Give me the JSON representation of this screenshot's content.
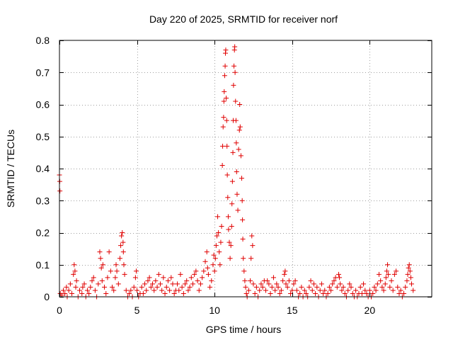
{
  "chart_data": {
    "type": "scatter",
    "title": "Day 220 of 2025, SRMTID for receiver norf",
    "xlabel": "GPS time / hours",
    "ylabel": "SRMTID / TECUs",
    "xlim": [
      0,
      24
    ],
    "ylim": [
      0,
      0.8
    ],
    "x_ticks": [
      0,
      5,
      10,
      15,
      20
    ],
    "y_ticks": [
      0,
      0.1,
      0.2,
      0.3,
      0.4,
      0.5,
      0.6,
      0.7,
      0.8
    ],
    "x_tick_labels": [
      "0",
      "5",
      "10",
      "15",
      "20"
    ],
    "y_tick_labels": [
      "0",
      "0.1",
      "0.2",
      "0.3",
      "0.4",
      "0.5",
      "0.6",
      "0.7",
      "0.8"
    ],
    "grid": true,
    "marker": "+",
    "color": "#e00000",
    "series": [
      {
        "name": "SRMTID",
        "points": [
          [
            0.0,
            0.38
          ],
          [
            0.02,
            0.36
          ],
          [
            0.03,
            0.33
          ],
          [
            0.05,
            0.01
          ],
          [
            0.15,
            0.005
          ],
          [
            0.25,
            0.02
          ],
          [
            0.35,
            0.01
          ],
          [
            0.45,
            0.03
          ],
          [
            0.5,
            0.0
          ],
          [
            0.6,
            0.02
          ],
          [
            0.7,
            0.04
          ],
          [
            0.8,
            0.01
          ],
          [
            0.9,
            0.07
          ],
          [
            0.95,
            0.1
          ],
          [
            1.0,
            0.08
          ],
          [
            1.05,
            0.03
          ],
          [
            1.1,
            0.05
          ],
          [
            1.2,
            0.0
          ],
          [
            1.3,
            0.02
          ],
          [
            1.45,
            0.01
          ],
          [
            1.5,
            0.03
          ],
          [
            1.6,
            0.04
          ],
          [
            1.7,
            0.0
          ],
          [
            1.8,
            0.02
          ],
          [
            1.9,
            0.01
          ],
          [
            2.0,
            0.03
          ],
          [
            2.1,
            0.05
          ],
          [
            2.2,
            0.06
          ],
          [
            2.3,
            0.02
          ],
          [
            2.4,
            0.0
          ],
          [
            2.5,
            0.04
          ],
          [
            2.6,
            0.14
          ],
          [
            2.65,
            0.12
          ],
          [
            2.7,
            0.09
          ],
          [
            2.75,
            0.05
          ],
          [
            2.8,
            0.1
          ],
          [
            2.9,
            0.03
          ],
          [
            3.0,
            0.01
          ],
          [
            3.1,
            0.06
          ],
          [
            3.2,
            0.14
          ],
          [
            3.3,
            0.08
          ],
          [
            3.4,
            0.03
          ],
          [
            3.5,
            0.02
          ],
          [
            3.6,
            0.06
          ],
          [
            3.65,
            0.1
          ],
          [
            3.7,
            0.08
          ],
          [
            3.8,
            0.04
          ],
          [
            3.9,
            0.12
          ],
          [
            3.95,
            0.16
          ],
          [
            4.0,
            0.19
          ],
          [
            4.05,
            0.2
          ],
          [
            4.1,
            0.17
          ],
          [
            4.12,
            0.14
          ],
          [
            4.15,
            0.1
          ],
          [
            4.2,
            0.07
          ],
          [
            4.3,
            0.02
          ],
          [
            4.4,
            0.0
          ],
          [
            4.5,
            0.01
          ],
          [
            4.6,
            0.02
          ],
          [
            4.7,
            0.0
          ],
          [
            4.8,
            0.03
          ],
          [
            4.9,
            0.06
          ],
          [
            4.95,
            0.08
          ],
          [
            5.0,
            0.02
          ],
          [
            5.1,
            0.0
          ],
          [
            5.2,
            0.01
          ],
          [
            5.3,
            0.03
          ],
          [
            5.4,
            0.01
          ],
          [
            5.5,
            0.04
          ],
          [
            5.6,
            0.02
          ],
          [
            5.7,
            0.05
          ],
          [
            5.8,
            0.06
          ],
          [
            5.9,
            0.03
          ],
          [
            6.0,
            0.04
          ],
          [
            6.1,
            0.02
          ],
          [
            6.2,
            0.05
          ],
          [
            6.3,
            0.03
          ],
          [
            6.4,
            0.07
          ],
          [
            6.5,
            0.04
          ],
          [
            6.6,
            0.02
          ],
          [
            6.7,
            0.06
          ],
          [
            6.8,
            0.01
          ],
          [
            6.9,
            0.03
          ],
          [
            7.0,
            0.05
          ],
          [
            7.1,
            0.02
          ],
          [
            7.2,
            0.06
          ],
          [
            7.3,
            0.04
          ],
          [
            7.4,
            0.01
          ],
          [
            7.5,
            0.02
          ],
          [
            7.6,
            0.04
          ],
          [
            7.7,
            0.02
          ],
          [
            7.8,
            0.07
          ],
          [
            7.9,
            0.03
          ],
          [
            8.0,
            0.01
          ],
          [
            8.1,
            0.04
          ],
          [
            8.2,
            0.05
          ],
          [
            8.3,
            0.02
          ],
          [
            8.4,
            0.03
          ],
          [
            8.5,
            0.06
          ],
          [
            8.6,
            0.04
          ],
          [
            8.7,
            0.07
          ],
          [
            8.8,
            0.08
          ],
          [
            8.9,
            0.05
          ],
          [
            9.0,
            0.02
          ],
          [
            9.1,
            0.04
          ],
          [
            9.2,
            0.06
          ],
          [
            9.3,
            0.08
          ],
          [
            9.4,
            0.11
          ],
          [
            9.5,
            0.14
          ],
          [
            9.55,
            0.09
          ],
          [
            9.6,
            0.07
          ],
          [
            9.7,
            0.03
          ],
          [
            9.8,
            0.05
          ],
          [
            9.9,
            0.1
          ],
          [
            9.95,
            0.13
          ],
          [
            10.0,
            0.08
          ],
          [
            10.05,
            0.12
          ],
          [
            10.1,
            0.16
          ],
          [
            10.15,
            0.19
          ],
          [
            10.2,
            0.25
          ],
          [
            10.25,
            0.2
          ],
          [
            10.3,
            0.14
          ],
          [
            10.35,
            0.1
          ],
          [
            10.4,
            0.17
          ],
          [
            10.45,
            0.22
          ],
          [
            10.5,
            0.41
          ],
          [
            10.52,
            0.47
          ],
          [
            10.55,
            0.53
          ],
          [
            10.58,
            0.56
          ],
          [
            10.6,
            0.61
          ],
          [
            10.62,
            0.64
          ],
          [
            10.65,
            0.69
          ],
          [
            10.68,
            0.72
          ],
          [
            10.7,
            0.76
          ],
          [
            10.72,
            0.77
          ],
          [
            10.75,
            0.62
          ],
          [
            10.78,
            0.55
          ],
          [
            10.8,
            0.47
          ],
          [
            10.82,
            0.38
          ],
          [
            10.85,
            0.31
          ],
          [
            10.88,
            0.25
          ],
          [
            10.9,
            0.21
          ],
          [
            10.95,
            0.17
          ],
          [
            11.0,
            0.12
          ],
          [
            11.05,
            0.16
          ],
          [
            11.1,
            0.22
          ],
          [
            11.12,
            0.29
          ],
          [
            11.15,
            0.36
          ],
          [
            11.18,
            0.45
          ],
          [
            11.2,
            0.55
          ],
          [
            11.22,
            0.66
          ],
          [
            11.25,
            0.72
          ],
          [
            11.28,
            0.77
          ],
          [
            11.3,
            0.78
          ],
          [
            11.32,
            0.7
          ],
          [
            11.35,
            0.61
          ],
          [
            11.38,
            0.55
          ],
          [
            11.4,
            0.48
          ],
          [
            11.42,
            0.39
          ],
          [
            11.45,
            0.32
          ],
          [
            11.5,
            0.27
          ],
          [
            11.55,
            0.46
          ],
          [
            11.6,
            0.52
          ],
          [
            11.62,
            0.6
          ],
          [
            11.65,
            0.53
          ],
          [
            11.7,
            0.44
          ],
          [
            11.75,
            0.37
          ],
          [
            11.78,
            0.3
          ],
          [
            11.8,
            0.24
          ],
          [
            11.82,
            0.18
          ],
          [
            11.85,
            0.12
          ],
          [
            11.9,
            0.08
          ],
          [
            11.95,
            0.05
          ],
          [
            12.0,
            0.03
          ],
          [
            12.05,
            0.01
          ],
          [
            12.1,
            0.0
          ],
          [
            12.2,
            0.02
          ],
          [
            12.3,
            0.05
          ],
          [
            12.35,
            0.12
          ],
          [
            12.4,
            0.19
          ],
          [
            12.45,
            0.16
          ],
          [
            12.5,
            0.04
          ],
          [
            12.6,
            0.01
          ],
          [
            12.7,
            0.03
          ],
          [
            12.8,
            0.0
          ],
          [
            12.9,
            0.02
          ],
          [
            13.0,
            0.04
          ],
          [
            13.1,
            0.03
          ],
          [
            13.2,
            0.05
          ],
          [
            13.3,
            0.02
          ],
          [
            13.4,
            0.05
          ],
          [
            13.5,
            0.04
          ],
          [
            13.6,
            0.01
          ],
          [
            13.7,
            0.03
          ],
          [
            13.8,
            0.06
          ],
          [
            13.9,
            0.02
          ],
          [
            14.0,
            0.04
          ],
          [
            14.1,
            0.03
          ],
          [
            14.2,
            0.01
          ],
          [
            14.3,
            0.02
          ],
          [
            14.4,
            0.05
          ],
          [
            14.5,
            0.07
          ],
          [
            14.55,
            0.08
          ],
          [
            14.6,
            0.04
          ],
          [
            14.7,
            0.03
          ],
          [
            14.8,
            0.05
          ],
          [
            14.9,
            0.01
          ],
          [
            15.0,
            0.02
          ],
          [
            15.1,
            0.04
          ],
          [
            15.2,
            0.05
          ],
          [
            15.3,
            0.02
          ],
          [
            15.4,
            0.0
          ],
          [
            15.5,
            0.01
          ],
          [
            15.6,
            0.03
          ],
          [
            15.7,
            0.0
          ],
          [
            15.8,
            0.02
          ],
          [
            15.9,
            0.01
          ],
          [
            16.0,
            0.0
          ],
          [
            16.1,
            0.03
          ],
          [
            16.2,
            0.05
          ],
          [
            16.3,
            0.02
          ],
          [
            16.4,
            0.04
          ],
          [
            16.5,
            0.01
          ],
          [
            16.6,
            0.03
          ],
          [
            16.7,
            0.0
          ],
          [
            16.8,
            0.02
          ],
          [
            16.9,
            0.04
          ],
          [
            17.0,
            0.01
          ],
          [
            17.1,
            0.02
          ],
          [
            17.2,
            0.0
          ],
          [
            17.3,
            0.01
          ],
          [
            17.4,
            0.03
          ],
          [
            17.5,
            0.02
          ],
          [
            17.6,
            0.04
          ],
          [
            17.7,
            0.05
          ],
          [
            17.8,
            0.06
          ],
          [
            17.9,
            0.03
          ],
          [
            18.0,
            0.07
          ],
          [
            18.05,
            0.06
          ],
          [
            18.1,
            0.04
          ],
          [
            18.2,
            0.02
          ],
          [
            18.3,
            0.03
          ],
          [
            18.4,
            0.01
          ],
          [
            18.5,
            0.0
          ],
          [
            18.6,
            0.02
          ],
          [
            18.7,
            0.04
          ],
          [
            18.8,
            0.03
          ],
          [
            18.9,
            0.01
          ],
          [
            19.0,
            0.0
          ],
          [
            19.1,
            0.02
          ],
          [
            19.2,
            0.0
          ],
          [
            19.3,
            0.01
          ],
          [
            19.4,
            0.03
          ],
          [
            19.5,
            0.01
          ],
          [
            19.6,
            0.04
          ],
          [
            19.7,
            0.02
          ],
          [
            19.8,
            0.01
          ],
          [
            19.9,
            0.0
          ],
          [
            20.0,
            0.02
          ],
          [
            20.1,
            0.0
          ],
          [
            20.2,
            0.01
          ],
          [
            20.3,
            0.03
          ],
          [
            20.4,
            0.02
          ],
          [
            20.5,
            0.04
          ],
          [
            20.6,
            0.07
          ],
          [
            20.7,
            0.05
          ],
          [
            20.8,
            0.03
          ],
          [
            20.9,
            0.02
          ],
          [
            21.0,
            0.04
          ],
          [
            21.05,
            0.06
          ],
          [
            21.1,
            0.08
          ],
          [
            21.15,
            0.1
          ],
          [
            21.2,
            0.07
          ],
          [
            21.3,
            0.03
          ],
          [
            21.4,
            0.05
          ],
          [
            21.5,
            0.02
          ],
          [
            21.6,
            0.07
          ],
          [
            21.7,
            0.08
          ],
          [
            21.8,
            0.03
          ],
          [
            21.9,
            0.01
          ],
          [
            22.0,
            0.02
          ],
          [
            22.1,
            0.0
          ],
          [
            22.2,
            0.01
          ],
          [
            22.3,
            0.03
          ],
          [
            22.4,
            0.05
          ],
          [
            22.45,
            0.07
          ],
          [
            22.5,
            0.09
          ],
          [
            22.55,
            0.1
          ],
          [
            22.6,
            0.08
          ],
          [
            22.65,
            0.06
          ],
          [
            22.7,
            0.04
          ],
          [
            22.8,
            0.02
          ]
        ]
      }
    ]
  }
}
